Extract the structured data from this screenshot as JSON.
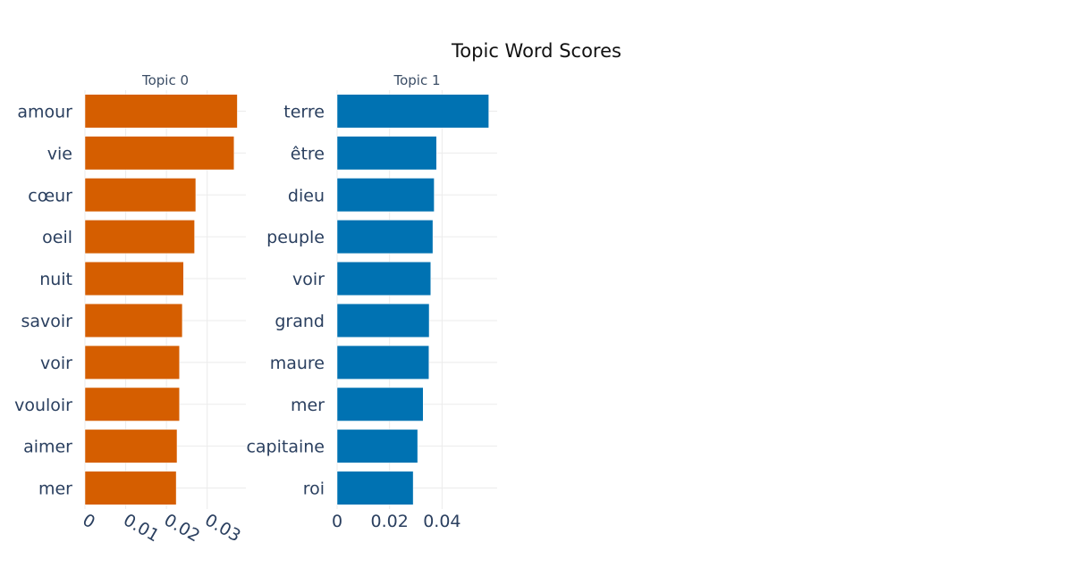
{
  "title": "Topic Word Scores",
  "chart_data": [
    {
      "type": "bar",
      "orientation": "horizontal",
      "title": "Topic 0",
      "color": "#D55E00",
      "categories": [
        "amour",
        "vie",
        "cœur",
        "oeil",
        "nuit",
        "savoir",
        "voir",
        "vouloir",
        "aimer",
        "mer"
      ],
      "values": [
        0.0374,
        0.0366,
        0.0272,
        0.0269,
        0.0242,
        0.0239,
        0.0232,
        0.0232,
        0.0226,
        0.0224
      ],
      "xlim": [
        0,
        0.0395
      ],
      "xticks": [
        0,
        0.01,
        0.02,
        0.03
      ],
      "xtick_labels": [
        "0",
        "0.01",
        "0.02",
        "0.03"
      ],
      "tick_angle": 30,
      "grid": true
    },
    {
      "type": "bar",
      "orientation": "horizontal",
      "title": "Topic 1",
      "color": "#0072B2",
      "categories": [
        "terre",
        "être",
        "dieu",
        "peuple",
        "voir",
        "grand",
        "maure",
        "mer",
        "capitaine",
        "roi"
      ],
      "values": [
        0.0578,
        0.0379,
        0.037,
        0.0365,
        0.0357,
        0.0351,
        0.035,
        0.0328,
        0.0307,
        0.029
      ],
      "xlim": [
        0,
        0.061
      ],
      "xticks": [
        0,
        0.02,
        0.04
      ],
      "xtick_labels": [
        "0",
        "0.02",
        "0.04"
      ],
      "tick_angle": 0,
      "grid": true
    }
  ]
}
